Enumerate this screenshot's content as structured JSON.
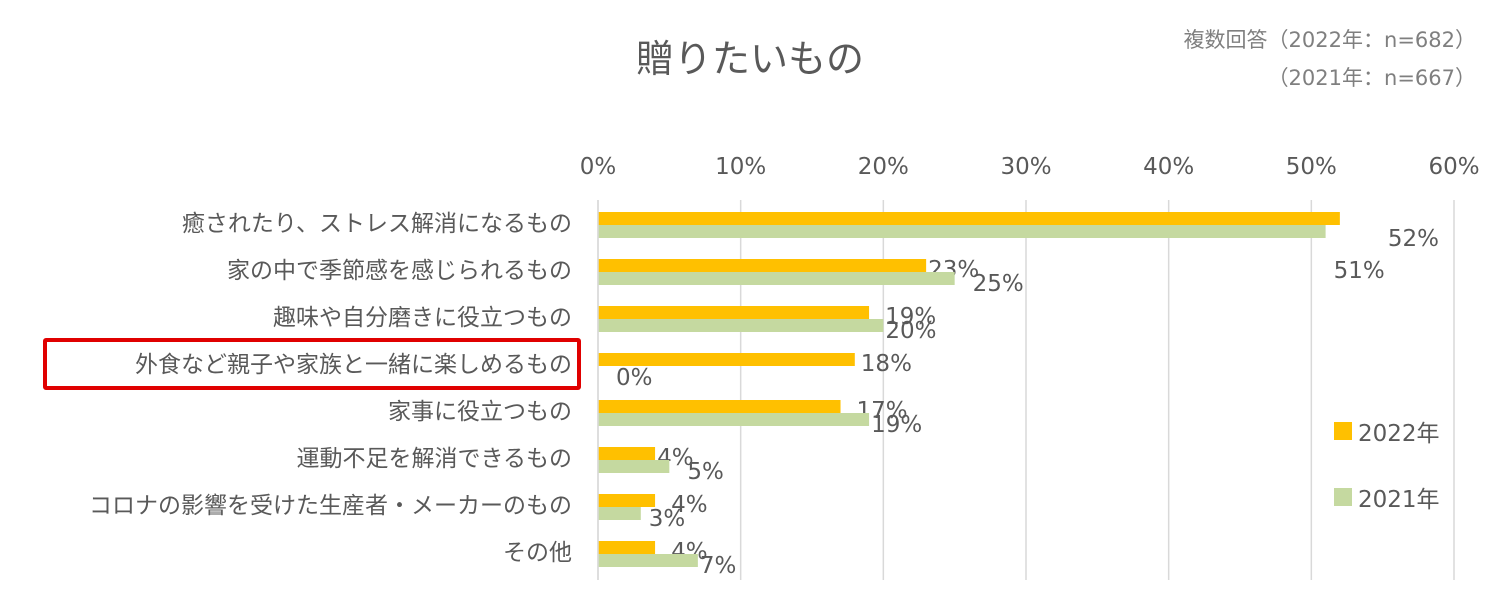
{
  "chart_data": {
    "type": "bar",
    "orientation": "horizontal",
    "title": "贈りたいもの",
    "notes": [
      "複数回答（2022年：n=682）",
      "（2021年：n=667）"
    ],
    "categories": [
      "癒されたり、ストレス解消になるもの",
      "家の中で季節感を感じられるもの",
      "趣味や自分磨きに役立つもの",
      "外食など親子や家族と一緒に楽しめるもの",
      "家事に役立つもの",
      "運動不足を解消できるもの",
      "コロナの影響を受けた生産者・メーカーのもの",
      "その他"
    ],
    "series": [
      {
        "name": "2022年",
        "color": "#ffc000",
        "values": [
          52,
          23,
          19,
          18,
          17,
          4,
          4,
          4
        ],
        "labels": [
          "52%",
          "23%",
          "19%",
          "18%",
          "17%",
          "4%",
          "4%",
          "4%"
        ]
      },
      {
        "name": "2021年",
        "color": "#c5d9a0",
        "values": [
          51,
          25,
          20,
          0,
          19,
          5,
          3,
          7
        ],
        "labels": [
          "51%",
          "25%",
          "20%",
          "0%",
          "19%",
          "5%",
          "3%",
          "7%"
        ]
      }
    ],
    "xlim": [
      0,
      60
    ],
    "xticks": [
      "0%",
      "10%",
      "20%",
      "30%",
      "40%",
      "50%",
      "60%"
    ],
    "grid": true,
    "legend_position": "right",
    "highlighted_category": "外食など親子や家族と一緒に楽しめるもの",
    "highlight_color": "#e00000"
  }
}
